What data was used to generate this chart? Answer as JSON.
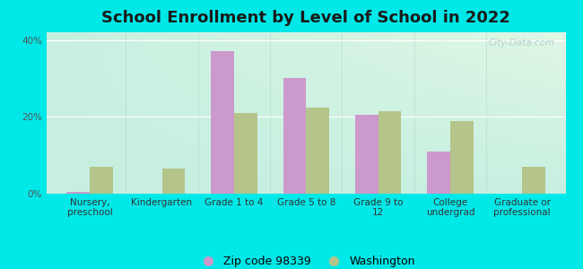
{
  "title": "School Enrollment by Level of School in 2022",
  "categories": [
    "Nursery,\npreschool",
    "Kindergarten",
    "Grade 1 to 4",
    "Grade 5 to 8",
    "Grade 9 to\n12",
    "College\nundergrad",
    "Graduate or\nprofessional"
  ],
  "zip_values": [
    0.5,
    0.0,
    37.0,
    30.0,
    20.5,
    11.0,
    0.0
  ],
  "wa_values": [
    7.0,
    6.5,
    21.0,
    22.5,
    21.5,
    19.0,
    7.0
  ],
  "zip_color": "#cc99cc",
  "wa_color": "#b5c48a",
  "background_outer": "#00e8e8",
  "ylim": [
    0,
    42
  ],
  "yticks": [
    0,
    20,
    40
  ],
  "ytick_labels": [
    "0%",
    "20%",
    "40%"
  ],
  "bar_width": 0.32,
  "legend_zip_label": "Zip code 98339",
  "legend_wa_label": "Washington",
  "watermark": "City-Data.com",
  "title_fontsize": 13,
  "tick_fontsize": 7.5
}
